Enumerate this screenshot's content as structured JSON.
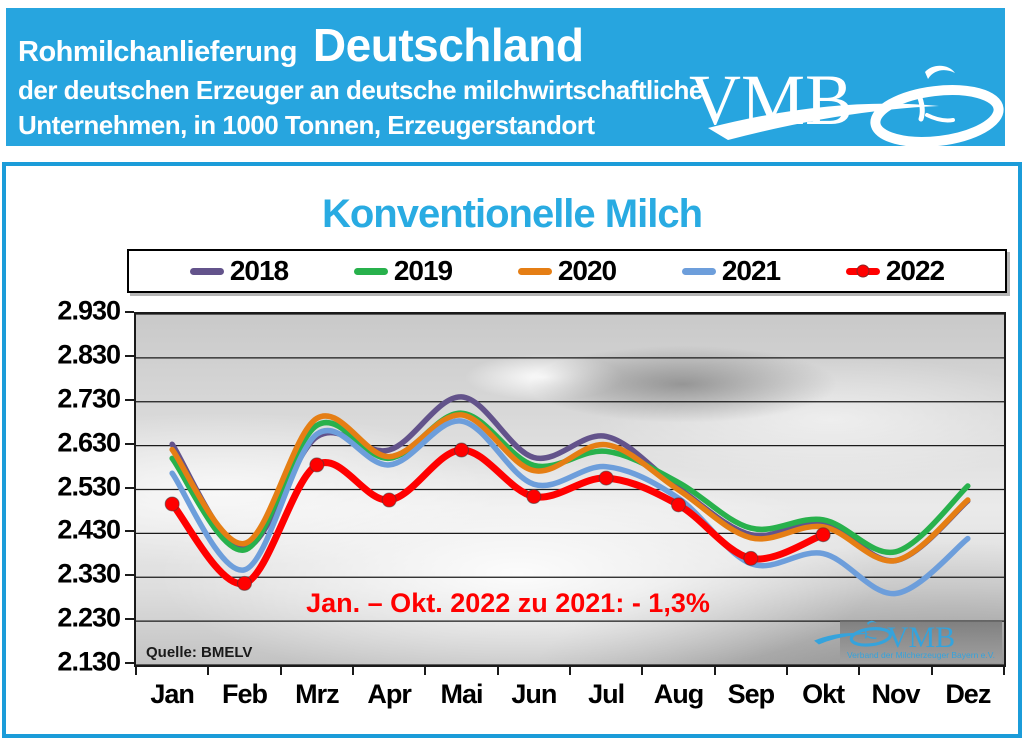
{
  "banner": {
    "bg_color": "#27A5DF",
    "title_small": "Rohmilchanlieferung",
    "title_large": "Deutschland",
    "subtitle_line1": "der deutschen Erzeuger an deutsche milchwirtschaftliche",
    "subtitle_line2": "Unternehmen, in 1000 Tonnen, Erzeugerstandort",
    "logo_text": "VMB"
  },
  "chart": {
    "title": "Konventionelle Milch",
    "title_color": "#29ABE2",
    "annotation": "Jan. – Okt. 2022 zu 2021: - 1,3%",
    "annotation_color": "#FF0000",
    "source": "Quelle: BMELV",
    "watermark_text": "VMB",
    "watermark_subtext": "Verband der Milcherzeuger Bayern e.V."
  },
  "chart_data": {
    "type": "line",
    "title": "Konventionelle Milch",
    "categories": [
      "Jan",
      "Feb",
      "Mrz",
      "Apr",
      "Mai",
      "Jun",
      "Jul",
      "Aug",
      "Sep",
      "Okt",
      "Nov",
      "Dez"
    ],
    "y_tick_labels": [
      "2.930",
      "2.830",
      "2.730",
      "2.630",
      "2.530",
      "2.430",
      "2.330",
      "2.230",
      "2.130"
    ],
    "ylim": [
      2130,
      2930
    ],
    "grid": true,
    "legend_position": "top",
    "series": [
      {
        "name": "2018",
        "color": "#63538B",
        "marker": false,
        "values": [
          2633,
          2396,
          2650,
          2620,
          2741,
          2603,
          2651,
          2533,
          2427,
          2453,
          2368,
          2504
        ]
      },
      {
        "name": "2019",
        "color": "#28B14C",
        "marker": false,
        "values": [
          2601,
          2392,
          2676,
          2601,
          2704,
          2585,
          2617,
          2546,
          2442,
          2461,
          2388,
          2538
        ]
      },
      {
        "name": "2020",
        "color": "#E57E14",
        "marker": false,
        "values": [
          2621,
          2407,
          2692,
          2605,
          2700,
          2573,
          2632,
          2529,
          2420,
          2445,
          2368,
          2506
        ]
      },
      {
        "name": "2021",
        "color": "#6D9EDB",
        "marker": false,
        "values": [
          2567,
          2347,
          2656,
          2586,
          2686,
          2542,
          2582,
          2510,
          2361,
          2384,
          2293,
          2418
        ]
      },
      {
        "name": "2022",
        "color": "#FF0000",
        "marker": true,
        "values": [
          2497,
          2316,
          2586,
          2506,
          2620,
          2514,
          2556,
          2495,
          2373,
          2427,
          null,
          null
        ]
      }
    ]
  }
}
